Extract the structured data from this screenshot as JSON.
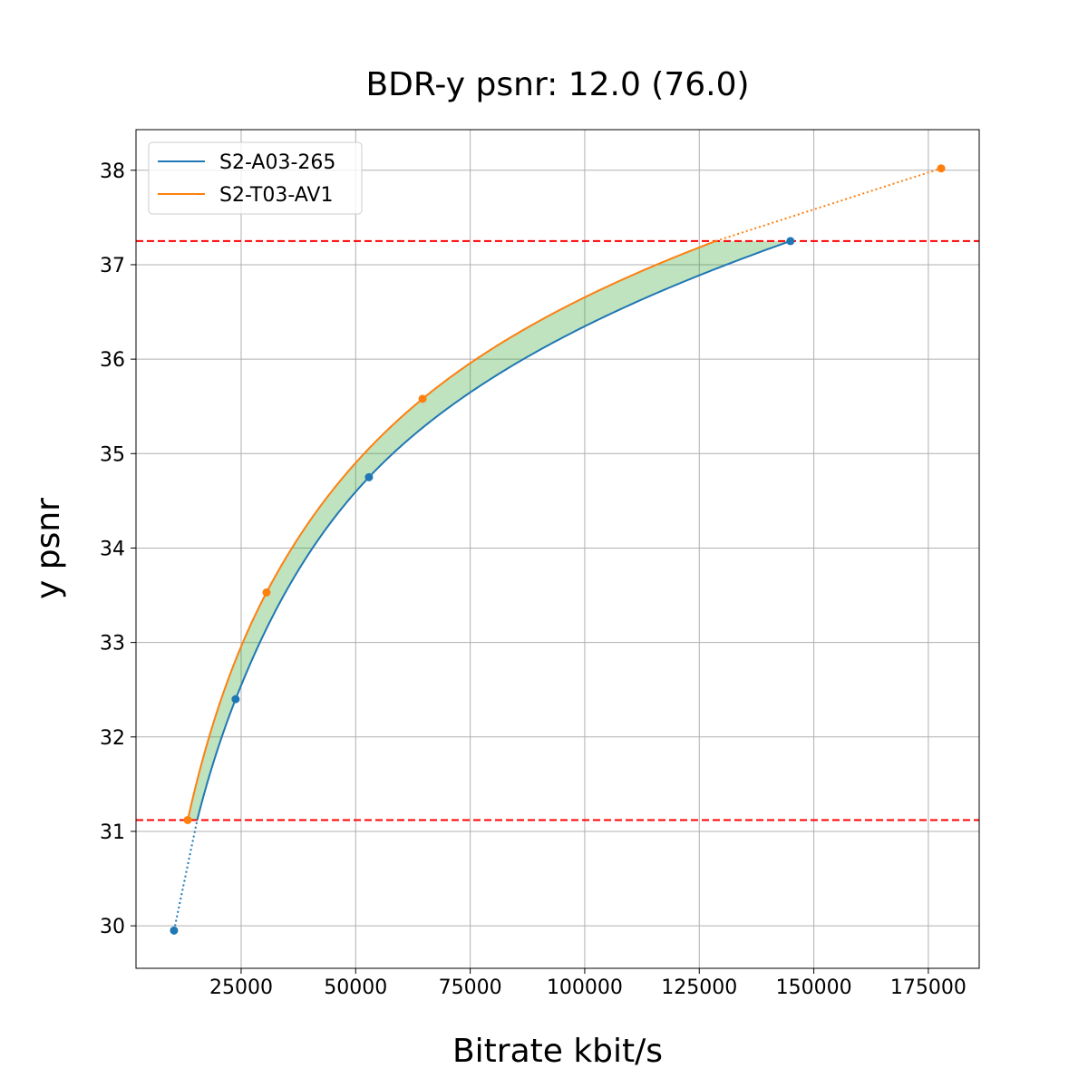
{
  "chart_data": {
    "type": "line",
    "title": "BDR-y psnr: 12.0 (76.0)",
    "xlabel": "Bitrate kbit/s",
    "ylabel": "y psnr",
    "xlim": [
      2050,
      186100
    ],
    "ylim": [
      29.55,
      38.43
    ],
    "xticks": [
      25000,
      50000,
      75000,
      100000,
      125000,
      150000,
      175000
    ],
    "yticks": [
      30,
      31,
      32,
      33,
      34,
      35,
      36,
      37,
      38
    ],
    "grid": true,
    "legend_position": "top-left",
    "series": [
      {
        "name": "S2-A03-265",
        "color": "#1f77b4",
        "x": [
          10350,
          23800,
          52900,
          144900
        ],
        "y": [
          29.95,
          32.4,
          34.75,
          37.25
        ]
      },
      {
        "name": "S2-T03-AV1",
        "color": "#ff7f0e",
        "x": [
          13340,
          30540,
          64600,
          177800
        ],
        "y": [
          31.12,
          33.53,
          35.58,
          38.02
        ]
      }
    ],
    "reference_lines": {
      "y": [
        31.12,
        37.25
      ],
      "color": "#ff0000",
      "style": "dashed"
    },
    "fill_color": "#2ca02c"
  }
}
